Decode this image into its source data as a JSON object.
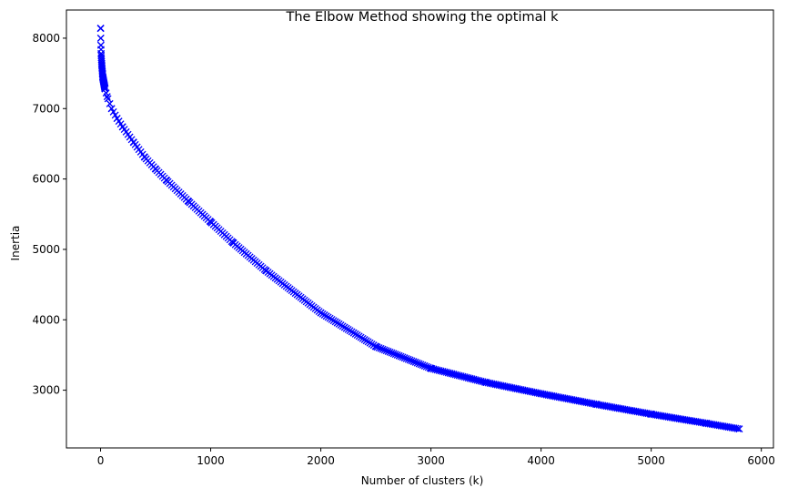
{
  "chart_data": {
    "type": "line",
    "title": "The Elbow Method showing the optimal k",
    "xlabel": "Number of clusters (k)",
    "ylabel": "Inertia",
    "xlim": [
      -310,
      6110
    ],
    "ylim": [
      2180,
      8400
    ],
    "xticks": [
      0,
      1000,
      2000,
      3000,
      4000,
      5000,
      6000
    ],
    "yticks": [
      3000,
      4000,
      5000,
      6000,
      7000,
      8000
    ],
    "xtick_labels": [
      "0",
      "1000",
      "2000",
      "3000",
      "4000",
      "5000",
      "6000"
    ],
    "ytick_labels": [
      "3000",
      "4000",
      "5000",
      "6000",
      "7000",
      "8000"
    ],
    "grid": false,
    "legend": "none",
    "series": [
      {
        "marker": "x",
        "color": "#0000ff",
        "x": [
          1,
          2,
          3,
          5,
          10,
          20,
          40,
          60,
          100,
          150,
          200,
          300,
          400,
          500,
          600,
          800,
          1000,
          1200,
          1500,
          2000,
          2500,
          3000,
          3500,
          4000,
          4500,
          5000,
          5500,
          5800
        ],
        "y": [
          8140,
          8000,
          7900,
          7780,
          7640,
          7450,
          7280,
          7170,
          7000,
          6860,
          6740,
          6520,
          6310,
          6140,
          5980,
          5680,
          5390,
          5100,
          4700,
          4100,
          3620,
          3310,
          3110,
          2950,
          2800,
          2660,
          2530,
          2450
        ]
      }
    ]
  }
}
